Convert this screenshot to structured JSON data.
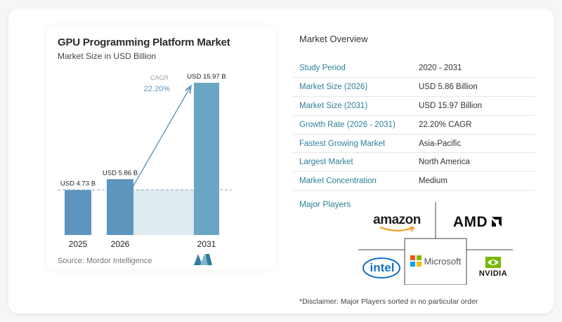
{
  "chart_data": {
    "type": "bar",
    "title": "GPU Programming Platform Market",
    "subtitle": "Market Size in USD Billion",
    "categories": [
      "2025",
      "2026",
      "2031"
    ],
    "values": [
      4.73,
      5.86,
      15.97
    ],
    "value_labels": [
      "USD 4.73 B",
      "USD 5.86 B",
      "USD 15.97 B"
    ],
    "cagr_label": "CAGR",
    "cagr_value": "22.20%",
    "ylim": [
      0,
      16.5
    ],
    "bar_color": "#5d95bf",
    "bar_color_last": "#6aa6c4",
    "band_color": "#dfeaf1",
    "arrow_color": "#5d95bf",
    "reference_line": 4.73,
    "grid": false,
    "legend": "none"
  },
  "source": "Source: Mordor Intelligence",
  "overview": {
    "title": "Market Overview",
    "rows": [
      {
        "label": "Study Period",
        "value": "2020 - 2031"
      },
      {
        "label": "Market Size (2026)",
        "value": "USD 5.86 Billion"
      },
      {
        "label": "Market Size (2031)",
        "value": "USD 15.97 Billion"
      },
      {
        "label": "Growth Rate (2026 - 2031)",
        "value": "22.20% CAGR"
      },
      {
        "label": "Fastest Growing Market",
        "value": "Asia-Pacific"
      },
      {
        "label": "Largest Market",
        "value": "North America"
      },
      {
        "label": "Market Concentration",
        "value": "Medium"
      }
    ]
  },
  "players": {
    "title": "Major Players",
    "amazon": "amazon",
    "amd": "AMD",
    "intel": "intel",
    "microsoft": "Microsoft",
    "nvidia": "NVIDIA"
  },
  "disclaimer": "*Disclaimer: Major Players sorted in no particular order",
  "colors": {
    "accent": "#2f7f98",
    "bar": "#5d95bf"
  }
}
